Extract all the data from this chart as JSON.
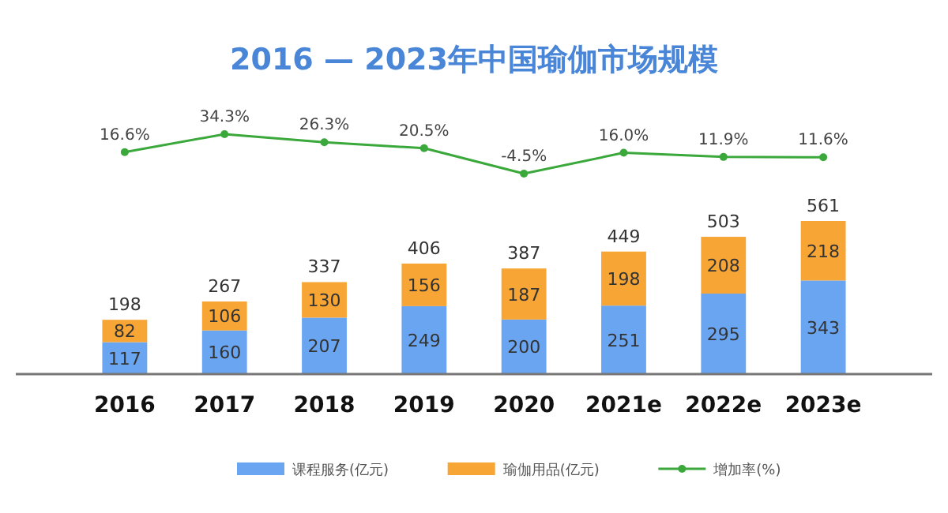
{
  "chart_data": [
    {
      "type": "line",
      "title": "2016 — 2023年中国瑜伽市场规模",
      "categories": [
        null,
        null,
        null,
        null,
        null,
        null,
        null,
        null
      ],
      "legend": "bottom",
      "marker": "circle",
      "series": [
        {
          "name": "增加率(%)",
          "color": "#3aa83a",
          "values": [
            16.6,
            34.3,
            26.3,
            20.5,
            -4.5,
            16.0,
            11.9,
            11.6
          ],
          "value_labels": [
            "16.6%",
            "34.3%",
            "26.3%",
            "20.5%",
            "-4.5%",
            "16.0%",
            "11.9%",
            "11.6%"
          ]
        }
      ]
    },
    {
      "type": "bar",
      "categories": [
        "2016",
        "2017",
        "2018",
        "2019",
        "2020",
        "2021e",
        "2022e",
        "2023e"
      ],
      "stacked": true,
      "tick_labels": "x",
      "legend": "bottom",
      "series": [
        {
          "name": "课程服务(亿元)",
          "color": "#6aa5f2",
          "values": [
            117,
            160,
            207,
            249,
            200,
            251,
            295,
            343
          ],
          "value_labels": [
            "117",
            "160",
            "207",
            "249",
            "200",
            "251",
            "295",
            "343"
          ]
        },
        {
          "name": "瑜伽用品(亿元)",
          "color": "#f7a535",
          "values": [
            82,
            106,
            130,
            156,
            187,
            198,
            208,
            218
          ],
          "value_labels": [
            "82",
            "106",
            "130",
            "156",
            "187",
            "198",
            "208",
            "218"
          ]
        }
      ],
      "totals": [
        "198",
        "267",
        "337",
        "406",
        "387",
        "449",
        "503",
        "561"
      ]
    }
  ]
}
